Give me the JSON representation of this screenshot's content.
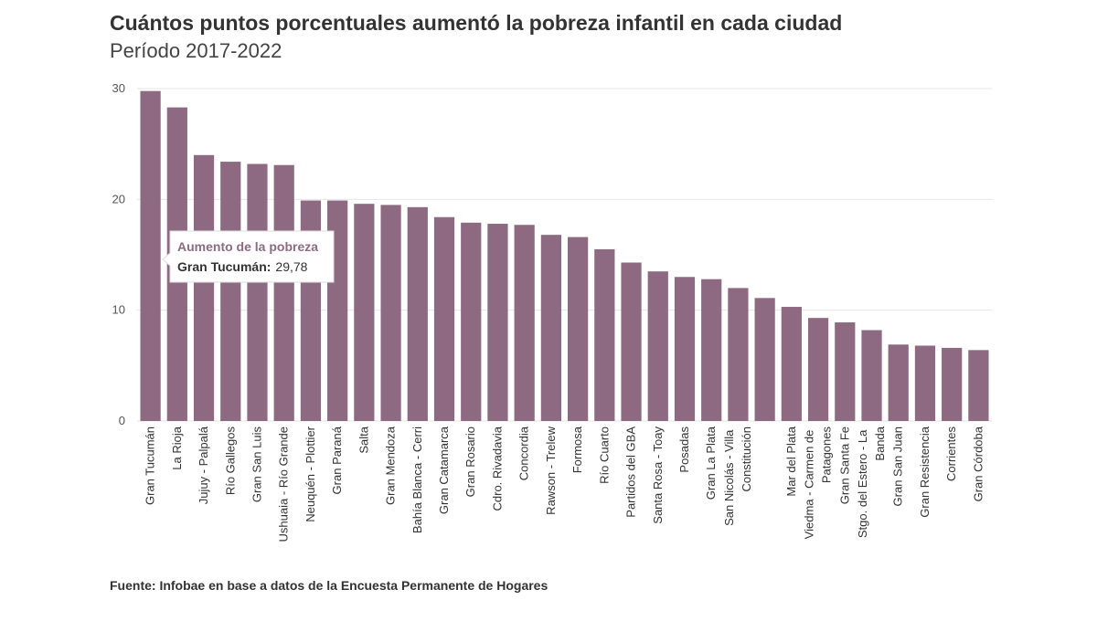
{
  "chart_data": {
    "type": "bar",
    "title": "Cuántos puntos porcentuales aumentó la pobreza infantil en cada ciudad",
    "subtitle": "Período 2017-2022",
    "source": "Fuente: Infobae en base a datos de la Encuesta Permanente de Hogares",
    "categories": [
      "Gran Tucumán",
      "La Rioja",
      "Jujuy - Palpalá",
      "Río Gallegos",
      "Gran San Luis",
      "Ushuaia - Río Grande",
      "Neuquén - Plottier",
      "Gran Paraná",
      "Salta",
      "Gran Mendoza",
      "Bahía Blanca - Cerri",
      "Gran Catamarca",
      "Gran Rosario",
      "Cdro. Rivadavia",
      "Concordia",
      "Rawson - Trelew",
      "Formosa",
      "Río Cuarto",
      "Partidos del GBA",
      "Santa Rosa - Toay",
      "Posadas",
      "Gran La Plata",
      "San Nicolás - Villa Constitución",
      null,
      "Mar del Plata",
      "Viedma - Carmen de Patagones",
      "Gran Santa Fe",
      "Stgo. del Estero - La Banda",
      "Gran San Juan",
      "Gran Resistencia",
      "Corrientes",
      "Gran Córdoba"
    ],
    "values": [
      29.78,
      28.3,
      24.0,
      23.4,
      23.2,
      23.1,
      19.9,
      19.9,
      19.6,
      19.5,
      19.3,
      18.4,
      17.9,
      17.8,
      17.7,
      16.8,
      16.6,
      15.5,
      14.3,
      13.5,
      13.0,
      12.8,
      12.0,
      11.1,
      10.3,
      9.3,
      8.9,
      8.2,
      6.9,
      6.8,
      6.6,
      6.4
    ],
    "color": "#8e6a82",
    "ylim": [
      0,
      30
    ],
    "yticks": [
      0,
      10,
      20,
      30
    ],
    "grid": true,
    "tooltip": {
      "title": "Aumento de la pobreza",
      "label": "Gran Tucumán:",
      "value": "29,78"
    }
  }
}
